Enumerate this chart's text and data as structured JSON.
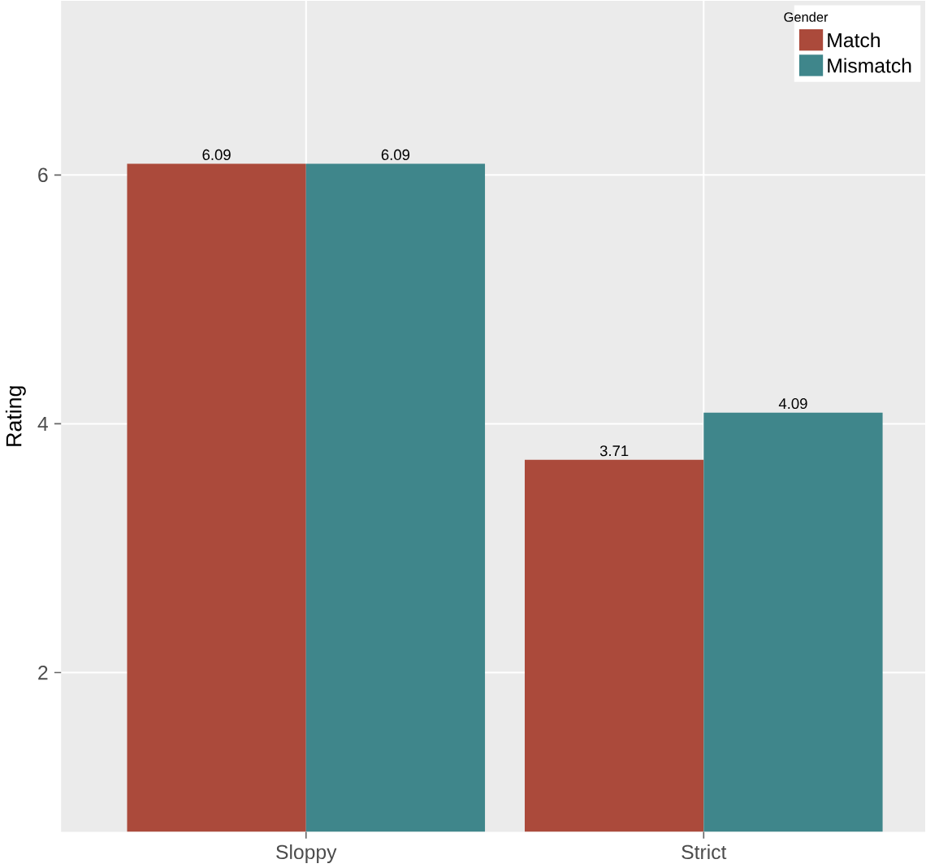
{
  "chart_data": {
    "type": "bar",
    "ylabel": "Rating",
    "legend_title": "Gender",
    "categories": [
      "Sloppy",
      "Strict"
    ],
    "series": [
      {
        "name": "Match",
        "color": "#ab4a3b",
        "values": [
          6.09,
          3.71
        ]
      },
      {
        "name": "Mismatch",
        "color": "#3f868b",
        "values": [
          6.09,
          4.09
        ]
      }
    ],
    "ylim": [
      0.72,
      7.4
    ],
    "yticks": [
      2,
      4,
      6
    ],
    "grid": true,
    "legend": "top right",
    "data_labels": true
  }
}
